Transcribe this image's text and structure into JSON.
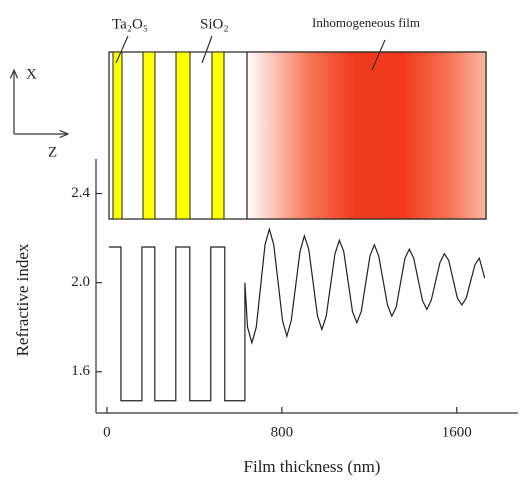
{
  "chart_data": {
    "type": "line",
    "xlabel": "Film thickness (nm)",
    "ylabel": "Refractive index",
    "annotations": [
      "Ta₂O₅",
      "SiO₂",
      "Inhomogeneous film",
      "X",
      "Z"
    ],
    "xlim": [
      -50,
      1880
    ],
    "xticks": [
      0,
      800,
      1600
    ],
    "ylim": [
      1.415,
      2.555
    ],
    "yticks": [
      1.6,
      {
        "value": 2,
        "label": "2.0"
      },
      2.4
    ],
    "color": "#222222",
    "x": [
      9,
      64,
      64,
      160,
      160,
      219,
      219,
      315,
      315,
      379,
      379,
      475,
      475,
      539,
      539,
      631,
      631,
      643,
      663,
      683,
      703,
      723,
      743,
      763,
      783,
      803,
      823,
      843,
      863,
      883,
      903,
      923,
      943,
      963,
      983,
      1003,
      1023,
      1043,
      1063,
      1083,
      1103,
      1123,
      1143,
      1163,
      1183,
      1203,
      1223,
      1243,
      1263,
      1283,
      1303,
      1323,
      1343,
      1363,
      1383,
      1403,
      1423,
      1443,
      1463,
      1483,
      1503,
      1523,
      1543,
      1563,
      1583,
      1603,
      1623,
      1643,
      1663,
      1683,
      1703,
      1728
    ],
    "values": [
      2.16,
      2.16,
      1.47,
      1.47,
      2.16,
      2.16,
      1.47,
      1.47,
      2.16,
      2.16,
      1.47,
      1.47,
      2.16,
      2.16,
      1.47,
      1.47,
      2.0,
      1.8,
      1.73,
      1.8,
      1.985,
      2.17,
      2.24,
      2.17,
      2.0,
      1.83,
      1.76,
      1.83,
      1.985,
      2.14,
      2.21,
      2.15,
      2.0,
      1.85,
      1.79,
      1.85,
      1.99,
      2.13,
      2.19,
      2.14,
      2.005,
      1.87,
      1.82,
      1.87,
      1.995,
      2.12,
      2.17,
      2.12,
      2.01,
      1.9,
      1.85,
      1.89,
      2.0,
      2.11,
      2.15,
      2.11,
      2.015,
      1.92,
      1.88,
      1.92,
      2.005,
      2.09,
      2.13,
      2.1,
      2.015,
      1.93,
      1.9,
      1.93,
      2.005,
      2.08,
      2.11,
      2.02
    ]
  }
}
